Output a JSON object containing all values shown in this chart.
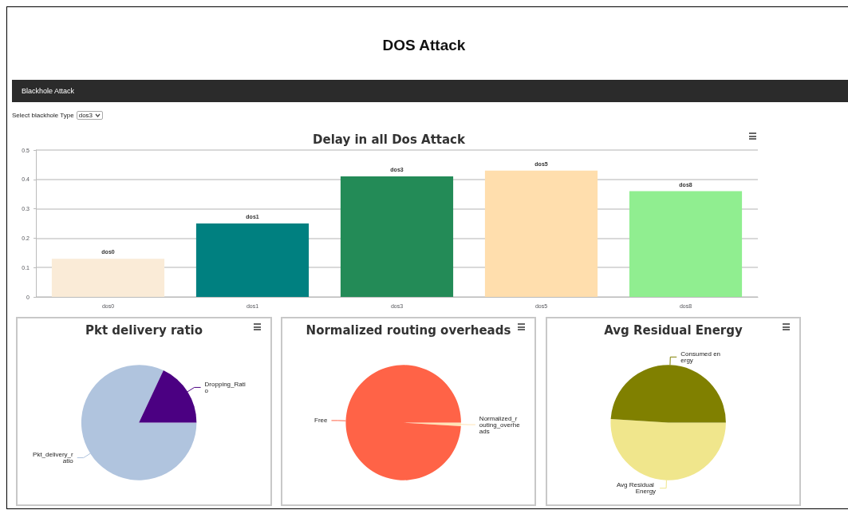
{
  "chart_data": [
    {
      "type": "other",
      "title": "DOS Attack",
      "annotations": [
        "Blackhole Attack",
        "Select blackhole Type",
        "dos3"
      ]
    },
    {
      "type": "bar",
      "title": "Delay in all Dos Attack",
      "categories": [
        "dos0",
        "dos1",
        "dos3",
        "dos5",
        "dos8"
      ],
      "values": [
        0.13,
        0.25,
        0.41,
        0.43,
        0.36
      ],
      "colors": [
        "#faebd7",
        "#008080",
        "#238b57",
        "#ffdead",
        "#90ee90"
      ],
      "ylim": [
        0,
        0.5
      ],
      "yticks": [
        0,
        0.1,
        0.2,
        0.3,
        0.4,
        0.5
      ],
      "grid": "y"
    },
    {
      "type": "pie",
      "title": "Pkt delivery ratio",
      "categories": [
        "Pkt_delivery_ratio",
        "Dropping_Ratio"
      ],
      "values": [
        82,
        18
      ],
      "colors": [
        "#b0c4de",
        "#4b0082"
      ]
    },
    {
      "type": "pie",
      "title": "Normalized routing overheads",
      "categories": [
        "Normalized_routing_overheads",
        "Free"
      ],
      "values": [
        1,
        99
      ],
      "colors": [
        "#ffe4b5",
        "#ff6347"
      ]
    },
    {
      "type": "pie",
      "title": "Avg Residual Energy",
      "categories": [
        "Avg Residual Energy",
        "Consumed energy"
      ],
      "values": [
        51,
        49
      ],
      "colors": [
        "#f0e68c",
        "#808000"
      ]
    }
  ]
}
